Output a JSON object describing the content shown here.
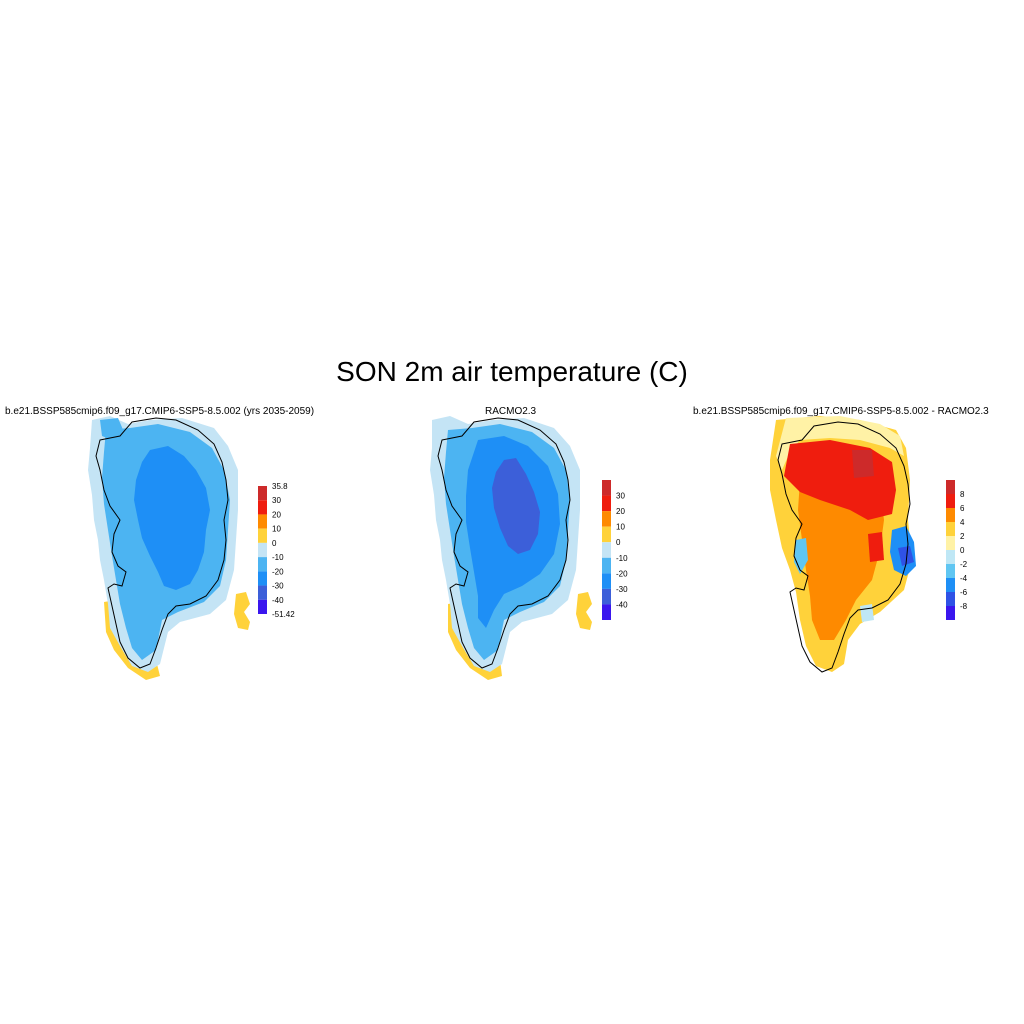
{
  "title": "SON 2m air temperature (C)",
  "palette": {
    "c_m50": "#3a16ee",
    "c_m40": "#3c5fd9",
    "c_m30": "#1e8ff6",
    "c_m20": "#4cb4f2",
    "c_m10": "#c4e4f5",
    "c_0": "#ffd23a",
    "c_10": "#fe8a00",
    "c_20": "#ef1d0e",
    "c_30": "#cd2a2a",
    "d_m8": "#3a16ee",
    "d_m6": "#2f52e6",
    "d_m4": "#1e8ff6",
    "d_m2": "#60c6f2",
    "d_0": "#bfe7f5",
    "d_2": "#fff2a6",
    "d_4": "#ffd23a",
    "d_6": "#fe8a00",
    "d_8": "#ef1d0e",
    "d_10": "#cd2a2a",
    "outline": "#000000"
  },
  "panels": [
    {
      "id": "model",
      "title": "b.e21.BSSP585cmip6.f09_g17.CMIP6-SSP5-8.5.002 (yrs 2035-2059)",
      "colorbar": {
        "labels": [
          "35.8",
          "30",
          "20",
          "10",
          "0",
          "-10",
          "-20",
          "-30",
          "-40",
          "-51.42"
        ],
        "colors": [
          "#cd2a2a",
          "#ef1d0e",
          "#fe8a00",
          "#ffd23a",
          "#c4e4f5",
          "#4cb4f2",
          "#1e8ff6",
          "#3c5fd9",
          "#3a16ee"
        ]
      }
    },
    {
      "id": "obs",
      "title": "RACMO2.3",
      "colorbar": {
        "labels": [
          "30",
          "20",
          "10",
          "0",
          "-10",
          "-20",
          "-30",
          "-40"
        ],
        "colors": [
          "#cd2a2a",
          "#ef1d0e",
          "#fe8a00",
          "#ffd23a",
          "#c4e4f5",
          "#4cb4f2",
          "#1e8ff6",
          "#3c5fd9",
          "#3a16ee"
        ]
      }
    },
    {
      "id": "diff",
      "title": "b.e21.BSSP585cmip6.f09_g17.CMIP6-SSP5-8.5.002 - RACMO2.3",
      "colorbar": {
        "labels": [
          "8",
          "6",
          "4",
          "2",
          "0",
          "-2",
          "-4",
          "-6",
          "-8"
        ],
        "colors": [
          "#cd2a2a",
          "#ef1d0e",
          "#fe8a00",
          "#ffd23a",
          "#fff2a6",
          "#bfe7f5",
          "#60c6f2",
          "#1e8ff6",
          "#2f52e6",
          "#3a16ee"
        ]
      }
    }
  ]
}
